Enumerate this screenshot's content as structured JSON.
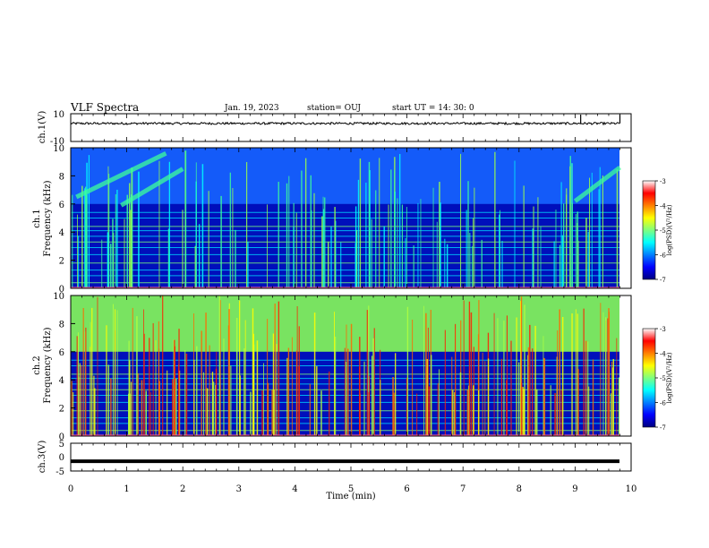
{
  "header": {
    "title": "VLF Spectra",
    "date": "Jan. 19, 2023",
    "station": "station= OUJ",
    "start_ut": "start  UT =   14: 30: 0"
  },
  "colors": {
    "jet": [
      "#00007f",
      "#0000ff",
      "#007fff",
      "#00ffff",
      "#7fff7f",
      "#ffff00",
      "#ff7f00",
      "#ff0000",
      "#7f0000"
    ]
  },
  "chart_data": [
    {
      "type": "line",
      "title": "",
      "ylabel": "ch.1(V)",
      "xlabel": "",
      "xlim": [
        0,
        10
      ],
      "ylim": [
        -10,
        10
      ],
      "y_ticks": [
        "10",
        "-10"
      ],
      "baseline_value": 3,
      "notes_spike_at_min": [
        9.1,
        9.8
      ]
    },
    {
      "type": "heatmap",
      "ylabel_line1": "ch.1",
      "ylabel_line2": "Frequency (kHz)",
      "xlim": [
        0,
        10
      ],
      "ylim": [
        0,
        10
      ],
      "y_ticks": [
        "0",
        "2",
        "4",
        "6",
        "8",
        "10"
      ],
      "colorbar": {
        "label": "log(PSD)(V²/Hz)",
        "ticks": [
          "-3",
          "-4",
          "-5",
          "-6",
          "-7"
        ],
        "range": [
          -7,
          -3
        ]
      }
    },
    {
      "type": "heatmap",
      "ylabel_line1": "ch.2",
      "ylabel_line2": "Frequency (kHz)",
      "xlim": [
        0,
        10
      ],
      "ylim": [
        0,
        10
      ],
      "y_ticks": [
        "0",
        "2",
        "4",
        "6",
        "8",
        "10"
      ],
      "colorbar": {
        "label": "log(PSD)(V²/Hz)",
        "ticks": [
          "-3",
          "-4",
          "-5",
          "-6",
          "-7"
        ],
        "range": [
          -7,
          -3
        ]
      }
    },
    {
      "type": "line",
      "ylabel": "ch.3(V)",
      "xlabel": "Time  (min)",
      "xlim": [
        0,
        10
      ],
      "ylim": [
        -5,
        5
      ],
      "y_ticks": [
        "5",
        "0",
        "-5"
      ],
      "x_ticks": [
        "0",
        "1",
        "2",
        "3",
        "4",
        "5",
        "6",
        "7",
        "8",
        "9",
        "10"
      ],
      "baseline_value": -1.5
    }
  ]
}
